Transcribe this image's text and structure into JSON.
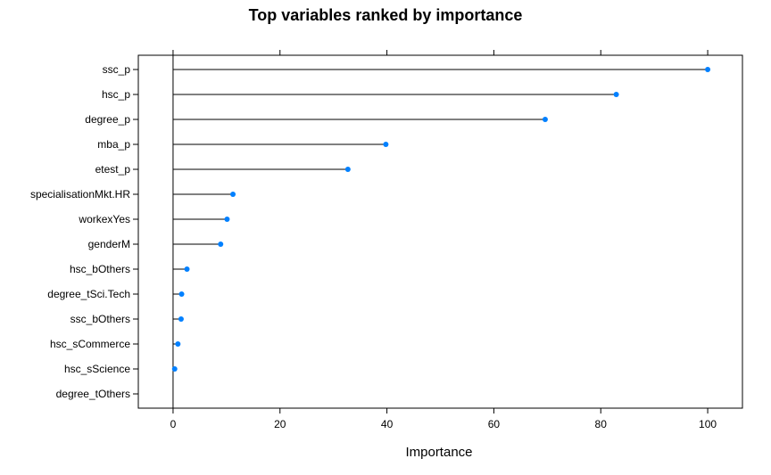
{
  "chart_data": {
    "type": "dot",
    "title": "Top variables ranked by importance",
    "xlabel": "Importance",
    "ylabel": "",
    "xlim": [
      -6.5,
      106.5
    ],
    "xticks": [
      0,
      20,
      40,
      60,
      80,
      100
    ],
    "grid": false,
    "point_color": "#0080ff",
    "categories": [
      "ssc_p",
      "hsc_p",
      "degree_p",
      "mba_p",
      "etest_p",
      "specialisationMkt.HR",
      "workexYes",
      "genderM",
      "hsc_bOthers",
      "degree_tSci.Tech",
      "ssc_bOthers",
      "hsc_sCommerce",
      "hsc_sScience",
      "degree_tOthers"
    ],
    "values": [
      100,
      82.9,
      69.6,
      39.8,
      32.7,
      11.2,
      10.1,
      8.9,
      2.6,
      1.6,
      1.5,
      0.9,
      0.3,
      null
    ]
  }
}
